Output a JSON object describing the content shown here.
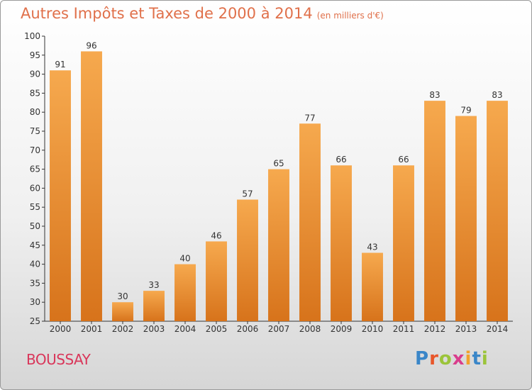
{
  "title": "Autres Impôts et Taxes de 2000 à 2014",
  "subtitle": "(en milliers d'€)",
  "place": "BOUSSAY",
  "logo": {
    "letters": [
      "P",
      "r",
      "o",
      "x",
      "i",
      "t",
      "i"
    ],
    "colors": [
      "#3a86c8",
      "#e8562a",
      "#9bc43a",
      "#d93d8c",
      "#f2a12b",
      "#3a86c8",
      "#9bc43a"
    ]
  },
  "colors": {
    "bar_top": "#f6a94e",
    "bar_bottom": "#d7731b",
    "title": "#e0704a",
    "place": "#d9365a"
  },
  "chart_data": {
    "type": "bar",
    "categories": [
      "2000",
      "2001",
      "2002",
      "2003",
      "2004",
      "2005",
      "2006",
      "2007",
      "2008",
      "2009",
      "2010",
      "2011",
      "2012",
      "2013",
      "2014"
    ],
    "values": [
      91,
      96,
      30,
      33,
      40,
      46,
      57,
      65,
      77,
      66,
      43,
      66,
      83,
      79,
      83
    ],
    "title": "Autres Impôts et Taxes de 2000 à 2014",
    "subtitle": "(en milliers d'€)",
    "xlabel": "",
    "ylabel": "",
    "ylim": [
      25,
      100
    ],
    "yticks": [
      25,
      30,
      35,
      40,
      45,
      50,
      55,
      60,
      65,
      70,
      75,
      80,
      85,
      90,
      95,
      100
    ],
    "grid": false,
    "data_labels": true
  }
}
